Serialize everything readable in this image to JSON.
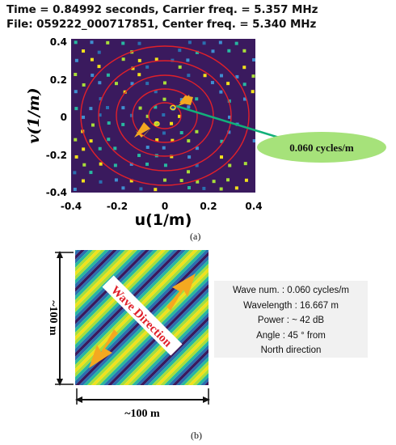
{
  "panel_a": {
    "header_line1": "Time = 0.84992 seconds, Carrier freq. = 5.357 MHz",
    "header_line2": "File: 059222_000717851, Center freq. = 5.340 MHz",
    "xlabel": "u(1/m)",
    "ylabel": "v(1/m)",
    "x_ticks": [
      "-0.4",
      "-0.2",
      "0",
      "0.2",
      "0.4"
    ],
    "y_ticks": [
      "0.4",
      "0.2",
      "0",
      "-0.2",
      "-0.4"
    ],
    "callout": "0.060 cycles/m",
    "caption": "(a)",
    "colors": {
      "background": "#3a1a5e",
      "rings": "#e0202a",
      "arrow": "#f4a820",
      "callout_fill": "#a6e27a",
      "callout_line": "#12b07a"
    }
  },
  "panel_b": {
    "wave_label": "Wave Direction",
    "width_label": "~100 m",
    "height_label": "~100 m",
    "info_lines": [
      "Wave num. : 0.060 cycles/m",
      "Wavelength : 16.667 m",
      "Power : ~ 42 dB",
      "Angle : 45 ° from",
      "North direction"
    ],
    "caption": "(b)",
    "colors": {
      "stripes": [
        "#3a1a5e",
        "#2a6fb0",
        "#28b8a0",
        "#a8de3a",
        "#f2e11c"
      ],
      "arrow": "#f4a820",
      "label": "#e0202a"
    }
  }
}
